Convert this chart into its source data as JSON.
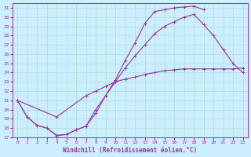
{
  "xlabel": "Windchill (Refroidissement éolien,°C)",
  "bg_color": "#cceeff",
  "line_color": "#993399",
  "grid_color": "#aaddcc",
  "xlim": [
    -0.5,
    23.5
  ],
  "ylim": [
    17,
    31.5
  ],
  "xticks": [
    0,
    1,
    2,
    3,
    4,
    5,
    6,
    7,
    8,
    9,
    10,
    11,
    12,
    13,
    14,
    15,
    16,
    17,
    18,
    19,
    20,
    21,
    22,
    23
  ],
  "yticks": [
    17,
    18,
    19,
    20,
    21,
    22,
    23,
    24,
    25,
    26,
    27,
    28,
    29,
    30,
    31
  ],
  "series": [
    {
      "x": [
        0,
        1,
        2,
        3,
        4,
        5,
        6,
        7,
        8,
        9,
        10,
        11,
        12,
        13,
        14,
        15,
        16,
        17,
        18,
        19
      ],
      "y": [
        21,
        19.2,
        18.3,
        18.0,
        17.2,
        17.3,
        17.8,
        18.2,
        19.6,
        21.5,
        23.2,
        25.3,
        27.2,
        29.3,
        30.6,
        30.8,
        31.0,
        31.1,
        31.2,
        30.8
      ]
    },
    {
      "x": [
        0,
        1,
        2,
        3,
        4,
        5,
        6,
        7,
        8,
        9,
        10,
        11,
        12,
        13,
        14,
        15,
        16,
        17,
        18,
        19,
        20,
        21,
        22,
        23
      ],
      "y": [
        21,
        19.2,
        18.3,
        18.0,
        17.2,
        17.3,
        17.8,
        18.2,
        20.0,
        21.5,
        23.0,
        24.5,
        25.8,
        27.0,
        28.2,
        29.0,
        29.5,
        30.0,
        30.3,
        29.2,
        28.0,
        26.5,
        25.0,
        24.0
      ]
    },
    {
      "x": [
        0,
        4,
        7,
        8,
        9,
        10,
        11,
        12,
        13,
        14,
        15,
        16,
        17,
        18,
        19,
        20,
        21,
        22,
        23
      ],
      "y": [
        21,
        19.2,
        21.5,
        22.0,
        22.5,
        23.0,
        23.3,
        23.5,
        23.8,
        24.0,
        24.2,
        24.3,
        24.4,
        24.4,
        24.4,
        24.4,
        24.4,
        24.4,
        24.5
      ]
    }
  ]
}
